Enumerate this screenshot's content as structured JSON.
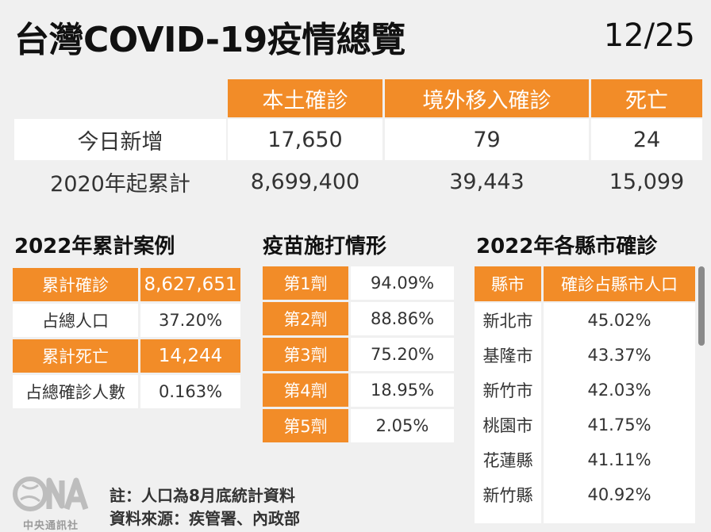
{
  "header": {
    "title": "台灣COVID-19疫情總覽",
    "date": "12/25"
  },
  "summary_table": {
    "columns": [
      "本土確診",
      "境外移入確診",
      "死亡"
    ],
    "rows": [
      {
        "label": "今日新增",
        "values": [
          "17,650",
          "79",
          "24"
        ]
      },
      {
        "label": "2020年起累計",
        "values": [
          "8,699,400",
          "39,443",
          "15,099"
        ]
      }
    ]
  },
  "cases_2022": {
    "heading": "2022年累計案例",
    "rows": [
      {
        "label": "累計確診",
        "value": "8,627,651",
        "highlight": true
      },
      {
        "label": "占總人口",
        "value": "37.20%",
        "highlight": false
      },
      {
        "label": "累計死亡",
        "value": "14,244",
        "highlight": true
      },
      {
        "label": "占總確診人數",
        "value": "0.163%",
        "highlight": false
      }
    ]
  },
  "vaccine": {
    "heading": "疫苗施打情形",
    "rows": [
      {
        "dose": "第1劑",
        "value": "94.09%"
      },
      {
        "dose": "第2劑",
        "value": "88.86%"
      },
      {
        "dose": "第3劑",
        "value": "75.20%"
      },
      {
        "dose": "第4劑",
        "value": "18.95%"
      },
      {
        "dose": "第5劑",
        "value": "2.05%"
      }
    ]
  },
  "county": {
    "heading": "2022年各縣市確診",
    "columns": [
      "縣市",
      "確診占縣市人口"
    ],
    "rows": [
      {
        "name": "新北市",
        "value": "45.02%"
      },
      {
        "name": "基隆市",
        "value": "43.37%"
      },
      {
        "name": "新竹市",
        "value": "42.03%"
      },
      {
        "name": "桃園市",
        "value": "41.75%"
      },
      {
        "name": "花蓮縣",
        "value": "41.11%"
      },
      {
        "name": "新竹縣",
        "value": "40.92%"
      }
    ]
  },
  "footer": {
    "note": "註：人口為8月底統計資料",
    "source": "資料來源：疾管署、內政部",
    "logo_text": "中央通訊社",
    "logo_mark": "CNA"
  },
  "colors": {
    "accent": "#f28c28",
    "background": "#f0f0f0",
    "cell": "#ffffff"
  }
}
